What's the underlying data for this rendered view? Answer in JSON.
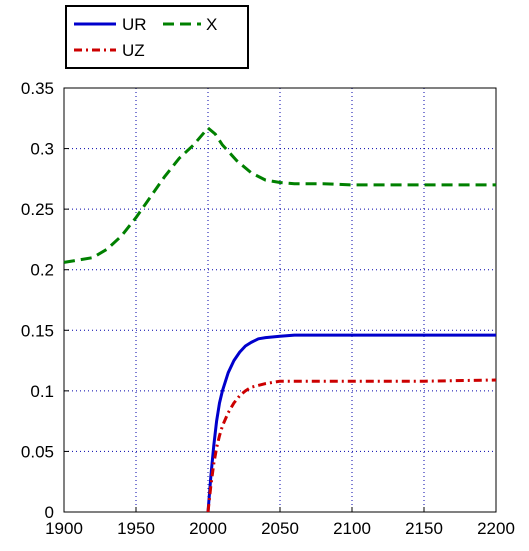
{
  "chart_data": {
    "type": "line",
    "title": "",
    "xlabel": "",
    "ylabel": "",
    "xlim": [
      1900,
      2200
    ],
    "ylim": [
      0,
      0.35
    ],
    "xticks": [
      1900,
      1950,
      2000,
      2050,
      2100,
      2150,
      2200
    ],
    "xtick_labels": [
      "1900",
      "1950",
      "2000",
      "2050",
      "2100",
      "2150",
      "2200"
    ],
    "yticks": [
      0,
      0.05,
      0.1,
      0.15,
      0.2,
      0.25,
      0.3,
      0.35
    ],
    "ytick_labels": [
      "0",
      "0.05",
      "0.1",
      "0.15",
      "0.2",
      "0.25",
      "0.3",
      "0.35"
    ],
    "grid": true,
    "legend_position": "top-left-outside",
    "series": [
      {
        "name": "UR",
        "color": "#0000cc",
        "dash": "solid",
        "x": [
          2000,
          2002,
          2004,
          2006,
          2008,
          2010,
          2014,
          2018,
          2022,
          2026,
          2030,
          2035,
          2040,
          2050,
          2060,
          2080,
          2100,
          2150,
          2200
        ],
        "y": [
          0.0,
          0.03,
          0.055,
          0.075,
          0.09,
          0.1,
          0.115,
          0.125,
          0.132,
          0.137,
          0.14,
          0.143,
          0.144,
          0.145,
          0.146,
          0.146,
          0.146,
          0.146,
          0.146
        ]
      },
      {
        "name": "UZ",
        "color": "#cc0000",
        "dash": "dashdot",
        "x": [
          2000,
          2002,
          2004,
          2006,
          2008,
          2010,
          2014,
          2018,
          2022,
          2026,
          2030,
          2040,
          2050,
          2060,
          2080,
          2100,
          2150,
          2200
        ],
        "y": [
          0.0,
          0.022,
          0.04,
          0.053,
          0.063,
          0.071,
          0.082,
          0.09,
          0.096,
          0.1,
          0.103,
          0.106,
          0.108,
          0.108,
          0.108,
          0.108,
          0.108,
          0.109
        ]
      },
      {
        "name": "X",
        "color": "#008000",
        "dash": "dashed",
        "x": [
          1900,
          1910,
          1920,
          1930,
          1940,
          1950,
          1960,
          1970,
          1980,
          1990,
          2000,
          2005,
          2010,
          2020,
          2030,
          2040,
          2050,
          2060,
          2080,
          2100,
          2150,
          2200
        ],
        "y": [
          0.206,
          0.208,
          0.21,
          0.217,
          0.228,
          0.243,
          0.26,
          0.277,
          0.292,
          0.303,
          0.317,
          0.312,
          0.303,
          0.29,
          0.28,
          0.274,
          0.272,
          0.271,
          0.271,
          0.27,
          0.27,
          0.27
        ]
      }
    ]
  }
}
